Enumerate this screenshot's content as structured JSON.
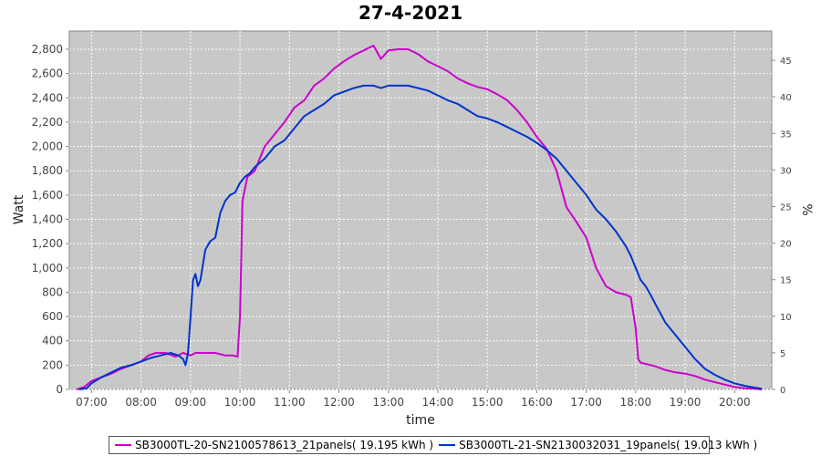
{
  "chart_data": {
    "type": "line",
    "title": "27-4-2021",
    "xlabel": "time",
    "ylabel": "Watt",
    "y2label": "%",
    "xlim": [
      6.55,
      20.75
    ],
    "ylim": [
      0,
      2950
    ],
    "y2lim": [
      0,
      49
    ],
    "x_ticks": [
      "07:00",
      "08:00",
      "09:00",
      "10:00",
      "11:00",
      "12:00",
      "13:00",
      "14:00",
      "15:00",
      "16:00",
      "17:00",
      "18:00",
      "19:00",
      "20:00"
    ],
    "x_tick_values": [
      7,
      8,
      9,
      10,
      11,
      12,
      13,
      14,
      15,
      16,
      17,
      18,
      19,
      20
    ],
    "y_ticks": [
      "0",
      "200",
      "400",
      "600",
      "800",
      "1,000",
      "1,200",
      "1,400",
      "1,600",
      "1,800",
      "2,000",
      "2,200",
      "2,400",
      "2,600",
      "2,800"
    ],
    "y_tick_values": [
      0,
      200,
      400,
      600,
      800,
      1000,
      1200,
      1400,
      1600,
      1800,
      2000,
      2200,
      2400,
      2600,
      2800
    ],
    "y2_ticks": [
      "0",
      "5",
      "10",
      "15",
      "20",
      "25",
      "30",
      "35",
      "40",
      "45"
    ],
    "y2_tick_values": [
      0,
      5,
      10,
      15,
      20,
      25,
      30,
      35,
      40,
      45
    ],
    "grid": true,
    "background": "#c8c8c8",
    "legend_position": "bottom",
    "series": [
      {
        "name": "SB3000TL-20-SN2100578613_21panels( 19.195 kWh )",
        "color": "#cc00cc",
        "x": [
          6.7,
          6.85,
          7.0,
          7.2,
          7.4,
          7.6,
          7.8,
          8.0,
          8.15,
          8.3,
          8.5,
          8.7,
          8.85,
          9.0,
          9.1,
          9.3,
          9.5,
          9.7,
          9.85,
          9.95,
          10.0,
          10.05,
          10.15,
          10.3,
          10.5,
          10.7,
          10.9,
          11.1,
          11.3,
          11.5,
          11.7,
          11.9,
          12.1,
          12.3,
          12.5,
          12.7,
          12.85,
          13.0,
          13.2,
          13.4,
          13.6,
          13.8,
          14.0,
          14.2,
          14.4,
          14.6,
          14.8,
          15.0,
          15.2,
          15.4,
          15.6,
          15.8,
          16.0,
          16.2,
          16.4,
          16.6,
          16.8,
          17.0,
          17.2,
          17.4,
          17.6,
          17.8,
          17.9,
          18.0,
          18.05,
          18.1,
          18.2,
          18.4,
          18.6,
          18.8,
          19.0,
          19.2,
          19.4,
          19.6,
          19.8,
          20.0,
          20.2,
          20.4,
          20.55
        ],
        "y": [
          0,
          20,
          70,
          100,
          130,
          170,
          200,
          230,
          280,
          300,
          300,
          270,
          300,
          280,
          300,
          300,
          300,
          280,
          280,
          270,
          600,
          1550,
          1750,
          1800,
          2000,
          2100,
          2200,
          2320,
          2380,
          2500,
          2560,
          2640,
          2700,
          2750,
          2790,
          2830,
          2720,
          2790,
          2800,
          2800,
          2760,
          2700,
          2660,
          2620,
          2560,
          2520,
          2490,
          2470,
          2430,
          2380,
          2300,
          2200,
          2080,
          1980,
          1800,
          1500,
          1380,
          1250,
          1000,
          850,
          800,
          780,
          760,
          500,
          250,
          220,
          210,
          190,
          160,
          140,
          130,
          110,
          80,
          60,
          40,
          20,
          10,
          5,
          0
        ]
      },
      {
        "name": "SB3000TL-21-SN2130032031_19panels( 19.013 kWh )",
        "color": "#0033cc",
        "x": [
          6.75,
          6.9,
          7.0,
          7.2,
          7.4,
          7.6,
          7.8,
          8.0,
          8.2,
          8.4,
          8.6,
          8.75,
          8.85,
          8.9,
          8.95,
          9.0,
          9.05,
          9.1,
          9.15,
          9.2,
          9.3,
          9.4,
          9.5,
          9.6,
          9.7,
          9.8,
          9.9,
          10.0,
          10.1,
          10.2,
          10.3,
          10.5,
          10.7,
          10.9,
          11.1,
          11.3,
          11.5,
          11.7,
          11.9,
          12.1,
          12.3,
          12.5,
          12.7,
          12.85,
          13.0,
          13.2,
          13.4,
          13.6,
          13.8,
          14.0,
          14.2,
          14.4,
          14.6,
          14.8,
          15.0,
          15.2,
          15.4,
          15.6,
          15.8,
          16.0,
          16.2,
          16.4,
          16.6,
          16.8,
          17.0,
          17.2,
          17.4,
          17.6,
          17.8,
          17.9,
          18.0,
          18.1,
          18.2,
          18.3,
          18.4,
          18.6,
          18.8,
          19.0,
          19.2,
          19.4,
          19.6,
          19.8,
          20.0,
          20.2,
          20.4,
          20.55
        ],
        "y": [
          0,
          10,
          50,
          100,
          140,
          180,
          200,
          230,
          260,
          280,
          300,
          280,
          250,
          200,
          300,
          600,
          900,
          950,
          850,
          900,
          1150,
          1220,
          1250,
          1450,
          1550,
          1600,
          1620,
          1700,
          1750,
          1780,
          1830,
          1900,
          2000,
          2050,
          2150,
          2250,
          2300,
          2350,
          2420,
          2450,
          2480,
          2500,
          2500,
          2480,
          2500,
          2500,
          2500,
          2480,
          2460,
          2420,
          2380,
          2350,
          2300,
          2250,
          2230,
          2200,
          2160,
          2120,
          2080,
          2030,
          1970,
          1900,
          1800,
          1700,
          1600,
          1480,
          1400,
          1300,
          1180,
          1100,
          1000,
          900,
          850,
          780,
          700,
          550,
          450,
          350,
          250,
          170,
          120,
          80,
          50,
          30,
          15,
          5
        ]
      }
    ]
  }
}
